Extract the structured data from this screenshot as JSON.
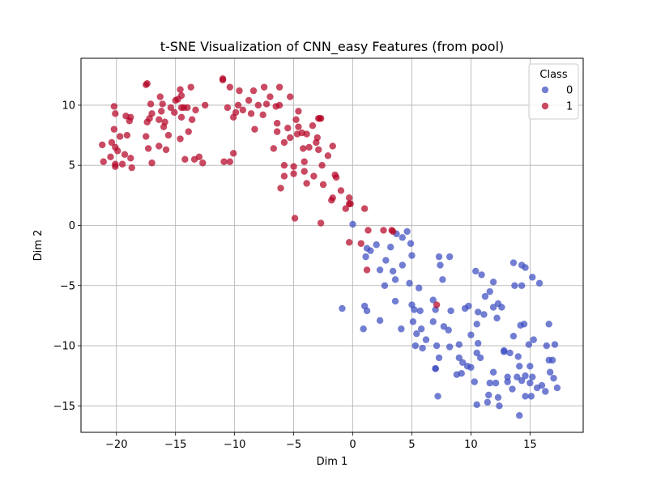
{
  "chart_data": {
    "type": "scatter",
    "title": "t-SNE Visualization of CNN_easy Features (from pool)",
    "xlabel": "Dim 1",
    "ylabel": "Dim 2",
    "xlim": [
      -23.0,
      19.5
    ],
    "ylim": [
      -17.2,
      13.9
    ],
    "x_ticks": [
      -20,
      -15,
      -10,
      -5,
      0,
      5,
      10,
      15
    ],
    "y_ticks": [
      -15,
      -10,
      -5,
      0,
      5,
      10
    ],
    "grid": true,
    "legend": {
      "title": "Class",
      "position": "top-right"
    },
    "series": [
      {
        "name": "0",
        "color": "#3b4cc0",
        "points": [
          [
            0.0,
            0.1
          ],
          [
            1.2,
            -1.9
          ],
          [
            1.5,
            -2.1
          ],
          [
            2.0,
            -1.6
          ],
          [
            3.2,
            -1.8
          ],
          [
            3.7,
            -0.7
          ],
          [
            4.2,
            -1.0
          ],
          [
            4.6,
            -0.5
          ],
          [
            4.9,
            -1.5
          ],
          [
            5.0,
            -2.5
          ],
          [
            1.1,
            -2.6
          ],
          [
            2.3,
            -3.7
          ],
          [
            2.8,
            -2.9
          ],
          [
            3.4,
            -3.8
          ],
          [
            3.6,
            -4.5
          ],
          [
            4.2,
            -3.3
          ],
          [
            4.8,
            -4.8
          ],
          [
            5.6,
            -5.2
          ],
          [
            2.7,
            -5.0
          ],
          [
            -0.9,
            -6.9
          ],
          [
            1.0,
            -6.7
          ],
          [
            1.2,
            -7.1
          ],
          [
            2.3,
            -7.9
          ],
          [
            0.9,
            -8.6
          ],
          [
            3.6,
            -6.3
          ],
          [
            4.1,
            -8.6
          ],
          [
            5.0,
            -6.6
          ],
          [
            5.2,
            -7.0
          ],
          [
            5.7,
            -7.1
          ],
          [
            5.1,
            -8.0
          ],
          [
            5.4,
            -9.0
          ],
          [
            5.8,
            -8.6
          ],
          [
            5.3,
            -10.0
          ],
          [
            5.9,
            -10.2
          ],
          [
            6.2,
            -9.5
          ],
          [
            6.8,
            -6.2
          ],
          [
            7.0,
            -7.0
          ],
          [
            6.8,
            -8.0
          ],
          [
            7.1,
            -10.0
          ],
          [
            7.3,
            -11.0
          ],
          [
            7.0,
            -11.9
          ],
          [
            7.2,
            -14.2
          ],
          [
            7.3,
            -2.6
          ],
          [
            7.4,
            -3.3
          ],
          [
            7.6,
            -4.5
          ],
          [
            8.2,
            -2.6
          ],
          [
            7.7,
            -8.4
          ],
          [
            8.1,
            -8.7
          ],
          [
            8.3,
            -7.1
          ],
          [
            8.2,
            -10.1
          ],
          [
            8.8,
            -12.4
          ],
          [
            9.0,
            -9.9
          ],
          [
            9.0,
            -11.0
          ],
          [
            9.2,
            -12.3
          ],
          [
            9.3,
            -11.4
          ],
          [
            9.5,
            -6.9
          ],
          [
            9.7,
            -11.7
          ],
          [
            9.8,
            -6.7
          ],
          [
            10.0,
            -11.8
          ],
          [
            10.0,
            -9.1
          ],
          [
            10.3,
            -13.0
          ],
          [
            10.5,
            -14.9
          ],
          [
            10.5,
            -10.6
          ],
          [
            10.5,
            -8.2
          ],
          [
            10.6,
            -7.2
          ],
          [
            10.6,
            -9.8
          ],
          [
            10.8,
            -11.0
          ],
          [
            10.9,
            -4.1
          ],
          [
            10.4,
            -3.8
          ],
          [
            11.1,
            -7.4
          ],
          [
            11.2,
            -5.9
          ],
          [
            11.4,
            -14.7
          ],
          [
            11.5,
            -14.1
          ],
          [
            11.6,
            -5.5
          ],
          [
            11.6,
            -13.1
          ],
          [
            11.9,
            -12.2
          ],
          [
            11.9,
            -6.8
          ],
          [
            11.9,
            -4.7
          ],
          [
            12.1,
            -13.1
          ],
          [
            12.2,
            -7.7
          ],
          [
            12.3,
            -6.5
          ],
          [
            12.3,
            -14.3
          ],
          [
            12.4,
            -15.0
          ],
          [
            12.6,
            -6.8
          ],
          [
            12.8,
            -10.4
          ],
          [
            12.8,
            -10.5
          ],
          [
            13.1,
            -12.6
          ],
          [
            13.1,
            -13.0
          ],
          [
            13.3,
            -10.6
          ],
          [
            13.5,
            -13.6
          ],
          [
            13.6,
            -3.1
          ],
          [
            13.6,
            -9.2
          ],
          [
            13.7,
            -5.0
          ],
          [
            13.9,
            -12.6
          ],
          [
            14.0,
            -10.9
          ],
          [
            14.1,
            -15.8
          ],
          [
            14.1,
            -11.7
          ],
          [
            14.3,
            -12.9
          ],
          [
            14.2,
            -8.3
          ],
          [
            14.3,
            -5.0
          ],
          [
            14.3,
            -3.3
          ],
          [
            14.5,
            -8.2
          ],
          [
            14.6,
            -3.5
          ],
          [
            14.6,
            -14.2
          ],
          [
            14.6,
            -12.5
          ],
          [
            14.9,
            -9.9
          ],
          [
            15.0,
            -11.7
          ],
          [
            15.0,
            -13.1
          ],
          [
            15.1,
            -14.2
          ],
          [
            15.2,
            -12.6
          ],
          [
            15.2,
            -4.3
          ],
          [
            15.3,
            -9.5
          ],
          [
            15.6,
            -13.5
          ],
          [
            15.8,
            -4.8
          ],
          [
            16.0,
            -13.3
          ],
          [
            16.3,
            -13.8
          ],
          [
            16.4,
            -10.0
          ],
          [
            16.6,
            -8.2
          ],
          [
            16.6,
            -11.2
          ],
          [
            16.7,
            -12.2
          ],
          [
            16.9,
            -11.2
          ],
          [
            17.0,
            -12.7
          ],
          [
            17.1,
            -9.9
          ],
          [
            17.3,
            -13.5
          ],
          [
            7.0,
            -11.9
          ]
        ]
      },
      {
        "name": "1",
        "color": "#b40426",
        "points": [
          [
            -21.2,
            6.7
          ],
          [
            -21.1,
            5.3
          ],
          [
            -20.5,
            5.7
          ],
          [
            -20.4,
            6.9
          ],
          [
            -20.2,
            9.9
          ],
          [
            -20.2,
            8.0
          ],
          [
            -20.1,
            9.3
          ],
          [
            -20.1,
            6.5
          ],
          [
            -20.1,
            5.1
          ],
          [
            -20.1,
            4.9
          ],
          [
            -19.9,
            6.2
          ],
          [
            -19.7,
            7.4
          ],
          [
            -19.5,
            5.1
          ],
          [
            -19.3,
            5.9
          ],
          [
            -19.2,
            9.1
          ],
          [
            -19.1,
            7.5
          ],
          [
            -18.9,
            8.7
          ],
          [
            -18.8,
            9.0
          ],
          [
            -18.8,
            5.6
          ],
          [
            -18.7,
            4.8
          ],
          [
            -17.5,
            11.7
          ],
          [
            -17.4,
            11.8
          ],
          [
            -17.5,
            7.4
          ],
          [
            -17.4,
            8.6
          ],
          [
            -17.3,
            6.4
          ],
          [
            -17.2,
            8.9
          ],
          [
            -17.1,
            10.1
          ],
          [
            -17.0,
            9.3
          ],
          [
            -17.0,
            5.2
          ],
          [
            -16.4,
            6.6
          ],
          [
            -16.4,
            8.8
          ],
          [
            -16.3,
            10.7
          ],
          [
            -16.2,
            9.5
          ],
          [
            -16.1,
            10.1
          ],
          [
            -16.0,
            8.2
          ],
          [
            -15.9,
            8.6
          ],
          [
            -15.8,
            6.3
          ],
          [
            -15.6,
            7.5
          ],
          [
            -15.4,
            9.8
          ],
          [
            -15.1,
            9.4
          ],
          [
            -15.0,
            10.4
          ],
          [
            -14.8,
            10.5
          ],
          [
            -14.6,
            11.3
          ],
          [
            -14.6,
            7.2
          ],
          [
            -14.5,
            10.8
          ],
          [
            -14.5,
            9.0
          ],
          [
            -14.3,
            9.8
          ],
          [
            -14.2,
            5.5
          ],
          [
            -14.0,
            9.8
          ],
          [
            -13.9,
            7.8
          ],
          [
            -13.7,
            11.5
          ],
          [
            -13.6,
            8.8
          ],
          [
            -13.4,
            5.5
          ],
          [
            -13.3,
            9.6
          ],
          [
            -13.0,
            5.7
          ],
          [
            -12.7,
            5.2
          ],
          [
            -12.5,
            10.0
          ],
          [
            -11.0,
            12.2
          ],
          [
            -11.0,
            12.1
          ],
          [
            -10.9,
            5.3
          ],
          [
            -10.6,
            9.8
          ],
          [
            -10.4,
            11.5
          ],
          [
            -10.4,
            5.3
          ],
          [
            -10.1,
            9.0
          ],
          [
            -10.1,
            6.0
          ],
          [
            -9.9,
            9.4
          ],
          [
            -9.7,
            10.0
          ],
          [
            -9.6,
            11.2
          ],
          [
            -9.3,
            9.6
          ],
          [
            -8.8,
            10.4
          ],
          [
            -8.6,
            9.3
          ],
          [
            -8.4,
            11.2
          ],
          [
            -8.3,
            8.0
          ],
          [
            -8.0,
            10.0
          ],
          [
            -7.6,
            9.2
          ],
          [
            -7.5,
            11.5
          ],
          [
            -7.3,
            10.1
          ],
          [
            -7.0,
            10.7
          ],
          [
            -6.7,
            6.4
          ],
          [
            -6.5,
            9.9
          ],
          [
            -6.4,
            8.5
          ],
          [
            -6.4,
            7.8
          ],
          [
            -6.2,
            10.0
          ],
          [
            -6.2,
            11.5
          ],
          [
            -6.1,
            3.1
          ],
          [
            -5.8,
            4.1
          ],
          [
            -5.8,
            5.0
          ],
          [
            -5.8,
            6.9
          ],
          [
            -5.5,
            8.1
          ],
          [
            -5.3,
            7.3
          ],
          [
            -5.3,
            10.7
          ],
          [
            -5.0,
            4.3
          ],
          [
            -5.0,
            4.9
          ],
          [
            -4.9,
            0.6
          ],
          [
            -4.8,
            8.8
          ],
          [
            -4.7,
            7.6
          ],
          [
            -4.6,
            9.5
          ],
          [
            -4.6,
            8.2
          ],
          [
            -4.3,
            7.7
          ],
          [
            -4.2,
            6.4
          ],
          [
            -4.1,
            5.3
          ],
          [
            -4.1,
            4.5
          ],
          [
            -3.9,
            3.5
          ],
          [
            -3.9,
            7.6
          ],
          [
            -3.7,
            6.5
          ],
          [
            -3.4,
            8.3
          ],
          [
            -3.3,
            4.1
          ],
          [
            -3.1,
            6.9
          ],
          [
            -3.0,
            7.3
          ],
          [
            -2.9,
            6.3
          ],
          [
            -2.8,
            8.9
          ],
          [
            -2.7,
            8.9
          ],
          [
            -2.7,
            0.2
          ],
          [
            -2.6,
            5.0
          ],
          [
            -2.5,
            3.4
          ],
          [
            -2.1,
            5.8
          ],
          [
            -1.8,
            2.1
          ],
          [
            -1.7,
            2.3
          ],
          [
            -1.7,
            6.6
          ],
          [
            -1.5,
            4.2
          ],
          [
            -1.4,
            4.0
          ],
          [
            -1.0,
            2.9
          ],
          [
            -0.6,
            1.4
          ],
          [
            -0.3,
            1.8
          ],
          [
            -0.3,
            2.3
          ],
          [
            -0.3,
            -1.4
          ],
          [
            -0.2,
            1.8
          ],
          [
            0.7,
            -1.5
          ],
          [
            1.0,
            1.4
          ],
          [
            1.2,
            -3.7
          ],
          [
            1.3,
            -0.4
          ],
          [
            2.6,
            -0.4
          ],
          [
            3.3,
            -0.4
          ],
          [
            3.4,
            -0.5
          ],
          [
            7.1,
            -6.6
          ],
          [
            -2.9,
            8.9
          ],
          [
            -14.5,
            9.8
          ]
        ]
      }
    ]
  }
}
